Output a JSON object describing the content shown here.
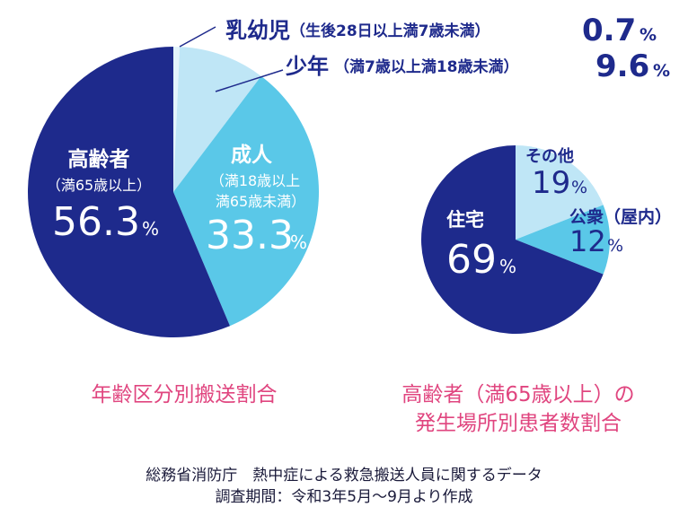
{
  "chart_data": [
    {
      "type": "pie",
      "title": "年齢区分別搬送割合",
      "unit": "%",
      "slices": [
        {
          "name": "乳幼児",
          "detail": "（生後28日以上満7歳未満）",
          "value": 0.7,
          "color": "#e3f4fb"
        },
        {
          "name": "少年",
          "detail": "（満7歳以上満18歳未満）",
          "value": 9.6,
          "color": "#bfe6f6"
        },
        {
          "name": "成人",
          "detail": "（満18歳以上満65歳未満）",
          "value": 33.3,
          "color": "#5ac8e8"
        },
        {
          "name": "高齢者",
          "detail": "（満65歳以上）",
          "value": 56.3,
          "color": "#1e2a8c"
        }
      ],
      "labels": {
        "infant_name": "乳幼児",
        "infant_detail": "（生後28日以上満7歳未満）",
        "infant_value": "0.7",
        "youth_name": "少年",
        "youth_detail": "（満7歳以上満18歳未満）",
        "youth_value": "9.6",
        "adult_name": "成人",
        "adult_detail_1": "（満18歳以上",
        "adult_detail_2": "満65歳未満）",
        "adult_value": "33.3",
        "elderly_name": "高齢者",
        "elderly_detail": "（満65歳以上）",
        "elderly_value": "56.3",
        "percent": "%"
      }
    },
    {
      "type": "pie",
      "title_line1": "高齢者（満65歳以上）の",
      "title_line2": "発生場所別患者数割合",
      "unit": "%",
      "slices": [
        {
          "name": "その他",
          "value": 19,
          "color": "#bfe6f6"
        },
        {
          "name": "公衆（屋内）",
          "value": 12,
          "color": "#5ac8e8"
        },
        {
          "name": "住宅",
          "value": 69,
          "color": "#1e2a8c"
        }
      ],
      "labels": {
        "other_name": "その他",
        "other_value": "19",
        "public_name": "公衆（屋内）",
        "public_value": "12",
        "home_name": "住宅",
        "home_value": "69",
        "percent": "%"
      }
    }
  ],
  "source": {
    "line1": "総務省消防庁　熱中症による救急搬送人員に関するデータ",
    "line2": "調査期間：令和3年5月〜9月より作成"
  }
}
